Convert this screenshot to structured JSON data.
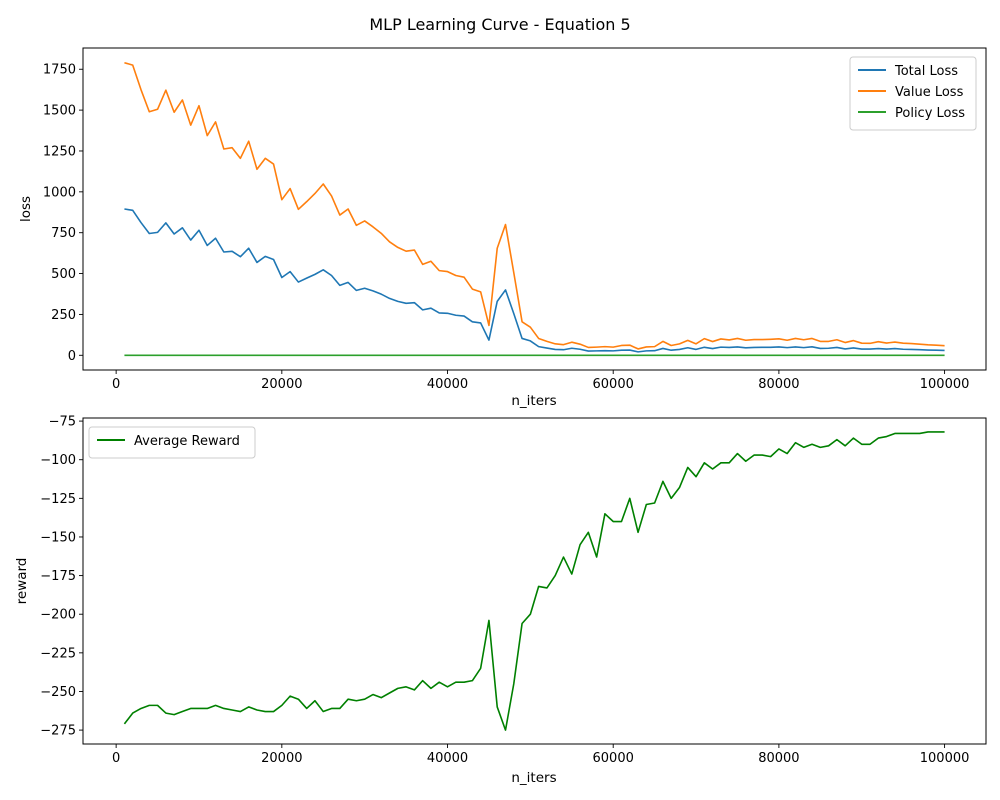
{
  "figure": {
    "title": "MLP Learning Curve - Equation 5"
  },
  "colors": {
    "total_loss": "#1f77b4",
    "value_loss": "#ff7f0e",
    "policy_loss": "#2ca02c",
    "average_reward": "#008000"
  },
  "chart_data": [
    {
      "type": "line",
      "xlabel": "n_iters",
      "ylabel": "loss",
      "xlim": [
        -4000,
        105000
      ],
      "ylim": [
        -90,
        1880
      ],
      "xticks": [
        0,
        20000,
        40000,
        60000,
        80000,
        100000
      ],
      "yticks": [
        0,
        250,
        500,
        750,
        1000,
        1250,
        1500,
        1750
      ],
      "legend_position": "top-right",
      "x": [
        1000,
        2000,
        3000,
        4000,
        5000,
        6000,
        7000,
        8000,
        9000,
        10000,
        11000,
        12000,
        13000,
        14000,
        15000,
        16000,
        17000,
        18000,
        19000,
        20000,
        21000,
        22000,
        23000,
        24000,
        25000,
        26000,
        27000,
        28000,
        29000,
        30000,
        31000,
        32000,
        33000,
        34000,
        35000,
        36000,
        37000,
        38000,
        39000,
        40000,
        41000,
        42000,
        43000,
        44000,
        45000,
        46000,
        47000,
        48000,
        49000,
        50000,
        51000,
        52000,
        53000,
        54000,
        55000,
        56000,
        57000,
        58000,
        59000,
        60000,
        61000,
        62000,
        63000,
        64000,
        65000,
        66000,
        67000,
        68000,
        69000,
        70000,
        71000,
        72000,
        73000,
        74000,
        75000,
        76000,
        77000,
        78000,
        79000,
        80000,
        81000,
        82000,
        83000,
        84000,
        85000,
        86000,
        87000,
        88000,
        89000,
        90000,
        91000,
        92000,
        93000,
        94000,
        95000,
        96000,
        97000,
        98000,
        99000,
        100000
      ],
      "series": [
        {
          "name": "Total Loss",
          "color": "#1f77b4",
          "values": [
            895,
            887,
            812,
            745,
            752,
            810,
            742,
            780,
            705,
            765,
            672,
            716,
            632,
            636,
            603,
            655,
            568,
            605,
            586,
            476,
            512,
            448,
            472,
            495,
            523,
            488,
            428,
            446,
            397,
            410,
            394,
            374,
            348,
            330,
            318,
            322,
            278,
            288,
            259,
            257,
            245,
            240,
            205,
            198,
            93,
            330,
            400,
            255,
            103,
            88,
            53,
            44,
            36,
            34,
            43,
            37,
            26,
            27,
            28,
            27,
            31,
            32,
            21,
            27,
            28,
            42,
            31,
            36,
            46,
            36,
            49,
            41,
            50,
            48,
            51,
            46,
            48,
            49,
            49,
            51,
            47,
            51,
            47,
            52,
            42,
            43,
            48,
            39,
            45,
            38,
            38,
            41,
            38,
            41,
            37,
            36,
            34,
            32,
            31,
            30
          ],
          "legend": "Total Loss"
        },
        {
          "name": "Value Loss",
          "color": "#ff7f0e",
          "values": [
            1790,
            1775,
            1625,
            1490,
            1505,
            1622,
            1487,
            1562,
            1408,
            1527,
            1344,
            1428,
            1262,
            1270,
            1205,
            1310,
            1138,
            1205,
            1170,
            952,
            1020,
            893,
            940,
            990,
            1048,
            975,
            858,
            895,
            795,
            822,
            786,
            746,
            694,
            660,
            637,
            644,
            556,
            575,
            518,
            512,
            488,
            478,
            405,
            388,
            183,
            655,
            800,
            505,
            205,
            172,
            103,
            85,
            70,
            65,
            80,
            68,
            48,
            50,
            53,
            50,
            60,
            62,
            39,
            51,
            53,
            85,
            60,
            70,
            91,
            70,
            102,
            84,
            100,
            94,
            103,
            92,
            96,
            96,
            98,
            101,
            92,
            103,
            95,
            103,
            85,
            85,
            95,
            78,
            90,
            74,
            73,
            83,
            75,
            81,
            74,
            72,
            68,
            64,
            62,
            59
          ],
          "legend": "Value Loss"
        },
        {
          "name": "Policy Loss",
          "color": "#2ca02c",
          "values": [
            0,
            0,
            0,
            0,
            0,
            0,
            0,
            0,
            0,
            0,
            0,
            0,
            0,
            0,
            0,
            0,
            0,
            0,
            0,
            0,
            0,
            0,
            0,
            0,
            0,
            0,
            0,
            0,
            0,
            0,
            0,
            0,
            0,
            0,
            0,
            0,
            0,
            0,
            0,
            0,
            0,
            0,
            0,
            0,
            0,
            0,
            0,
            0,
            0,
            0,
            0,
            0,
            0,
            0,
            0,
            0,
            0,
            0,
            0,
            0,
            0,
            0,
            0,
            0,
            0,
            0,
            0,
            0,
            0,
            0,
            0,
            0,
            0,
            0,
            0,
            0,
            0,
            0,
            0,
            0,
            0,
            0,
            0,
            0,
            0,
            0,
            0,
            0,
            0,
            0,
            0,
            0,
            0,
            0,
            0,
            0,
            0,
            0,
            0,
            0
          ],
          "legend": "Policy Loss"
        }
      ]
    },
    {
      "type": "line",
      "xlabel": "n_iters",
      "ylabel": "reward",
      "xlim": [
        -4000,
        105000
      ],
      "ylim": [
        -284,
        -73
      ],
      "xticks": [
        0,
        20000,
        40000,
        60000,
        80000,
        100000
      ],
      "yticks": [
        -275,
        -250,
        -225,
        -200,
        -175,
        -150,
        -125,
        -100,
        -75
      ],
      "legend_position": "top-left",
      "x": [
        1000,
        2000,
        3000,
        4000,
        5000,
        6000,
        7000,
        8000,
        9000,
        10000,
        11000,
        12000,
        13000,
        14000,
        15000,
        16000,
        17000,
        18000,
        19000,
        20000,
        21000,
        22000,
        23000,
        24000,
        25000,
        26000,
        27000,
        28000,
        29000,
        30000,
        31000,
        32000,
        33000,
        34000,
        35000,
        36000,
        37000,
        38000,
        39000,
        40000,
        41000,
        42000,
        43000,
        44000,
        45000,
        46000,
        47000,
        48000,
        49000,
        50000,
        51000,
        52000,
        53000,
        54000,
        55000,
        56000,
        57000,
        58000,
        59000,
        60000,
        61000,
        62000,
        63000,
        64000,
        65000,
        66000,
        67000,
        68000,
        69000,
        70000,
        71000,
        72000,
        73000,
        74000,
        75000,
        76000,
        77000,
        78000,
        79000,
        80000,
        81000,
        82000,
        83000,
        84000,
        85000,
        86000,
        87000,
        88000,
        89000,
        90000,
        91000,
        92000,
        93000,
        94000,
        95000,
        96000,
        97000,
        98000,
        99000,
        100000
      ],
      "series": [
        {
          "name": "Average Reward",
          "color": "#008000",
          "values": [
            -271,
            -264,
            -261,
            -259,
            -259,
            -264,
            -265,
            -263,
            -261,
            -261,
            -261,
            -259,
            -261,
            -262,
            -263,
            -260,
            -262,
            -263,
            -263,
            -259,
            -253,
            -255,
            -261,
            -256,
            -263,
            -261,
            -261,
            -255,
            -256,
            -255,
            -252,
            -254,
            -251,
            -248,
            -247,
            -249,
            -243,
            -248,
            -244,
            -247,
            -244,
            -244,
            -243,
            -235,
            -204,
            -260,
            -275,
            -245,
            -206,
            -200,
            -182,
            -183,
            -175,
            -163,
            -174,
            -155,
            -147,
            -163,
            -135,
            -140,
            -140,
            -125,
            -147,
            -129,
            -128,
            -114,
            -125,
            -118,
            -105,
            -111,
            -102,
            -106,
            -102,
            -102,
            -96,
            -101,
            -97,
            -97,
            -98,
            -93,
            -96,
            -89,
            -92,
            -90,
            -92,
            -91,
            -87,
            -91,
            -86,
            -90,
            -90,
            -86,
            -85,
            -83,
            -83,
            -83,
            -83,
            -82,
            -82,
            -82
          ],
          "legend": "Average Reward"
        }
      ]
    }
  ]
}
